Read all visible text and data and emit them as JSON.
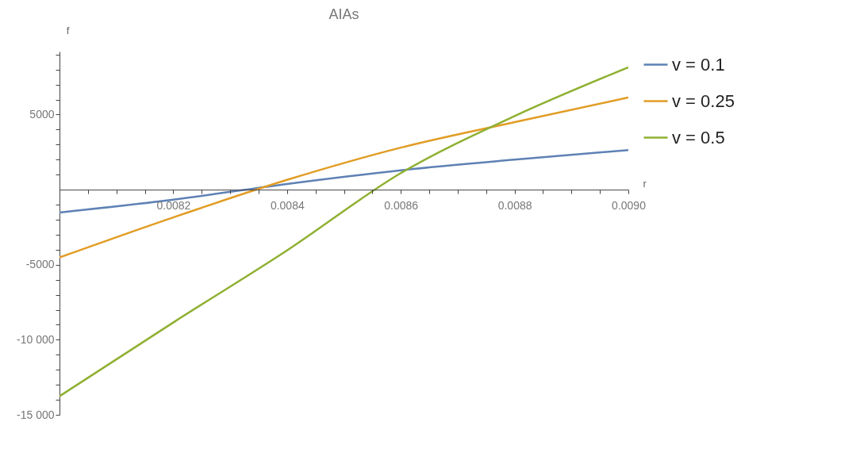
{
  "chart_data": {
    "type": "line",
    "title": "AIAs",
    "xlabel": "r",
    "ylabel": "f",
    "x": [
      0.008,
      0.0082,
      0.0084,
      0.0086,
      0.0088,
      0.009
    ],
    "series": [
      {
        "name": "v = 0.1",
        "color": "#5e81b5",
        "values": [
          -1520,
          -670,
          380,
          1290,
          2000,
          2640
        ]
      },
      {
        "name": "v = 0.25",
        "color": "#e19c24",
        "values": [
          -4520,
          -1850,
          650,
          2800,
          4500,
          6140
        ]
      },
      {
        "name": "v = 0.5",
        "color": "#8fb032",
        "values": [
          -13760,
          -8850,
          -4050,
          1100,
          4900,
          8150
        ]
      }
    ],
    "xlim": [
      0.008,
      0.009
    ],
    "xticks": [
      {
        "value": 0.00805,
        "label": null
      },
      {
        "value": 0.0081,
        "label": null
      },
      {
        "value": 0.00815,
        "label": null
      },
      0.0082,
      {
        "value": 0.00825,
        "label": null
      },
      {
        "value": 0.0083,
        "label": null
      },
      {
        "value": 0.00835,
        "label": null
      },
      0.0084,
      {
        "value": 0.00845,
        "label": null
      },
      {
        "value": 0.0085,
        "label": null
      },
      {
        "value": 0.00855,
        "label": null
      },
      0.0086,
      {
        "value": 0.00865,
        "label": null
      },
      {
        "value": 0.0087,
        "label": null
      },
      {
        "value": 0.00875,
        "label": null
      },
      0.0088,
      {
        "value": 0.00885,
        "label": null
      },
      {
        "value": 0.0089,
        "label": null
      },
      {
        "value": 0.00895,
        "label": null
      },
      {
        "value": 0.009,
        "label": "0.0090"
      }
    ],
    "ylim": [
      -15000,
      9200
    ],
    "yticks": [
      {
        "value": -15000,
        "label": "-15 000"
      },
      {
        "value": -14000,
        "label": null
      },
      {
        "value": -13000,
        "label": null
      },
      {
        "value": -12000,
        "label": null
      },
      {
        "value": -11000,
        "label": null
      },
      {
        "value": -10000,
        "label": "-10 000"
      },
      {
        "value": -9000,
        "label": null
      },
      {
        "value": -8000,
        "label": null
      },
      {
        "value": -7000,
        "label": null
      },
      {
        "value": -6000,
        "label": null
      },
      {
        "value": -5000,
        "label": "-5000"
      },
      {
        "value": -4000,
        "label": null
      },
      {
        "value": -3000,
        "label": null
      },
      {
        "value": -2000,
        "label": null
      },
      {
        "value": -1000,
        "label": null
      },
      {
        "value": 1000,
        "label": null
      },
      {
        "value": 2000,
        "label": null
      },
      {
        "value": 3000,
        "label": null
      },
      {
        "value": 4000,
        "label": null
      },
      5000,
      {
        "value": 6000,
        "label": null
      },
      {
        "value": 7000,
        "label": null
      },
      {
        "value": 8000,
        "label": null
      },
      {
        "value": 9000,
        "label": null
      }
    ],
    "grid": false,
    "legend": "right",
    "marker": "none",
    "line_style": "solid"
  }
}
